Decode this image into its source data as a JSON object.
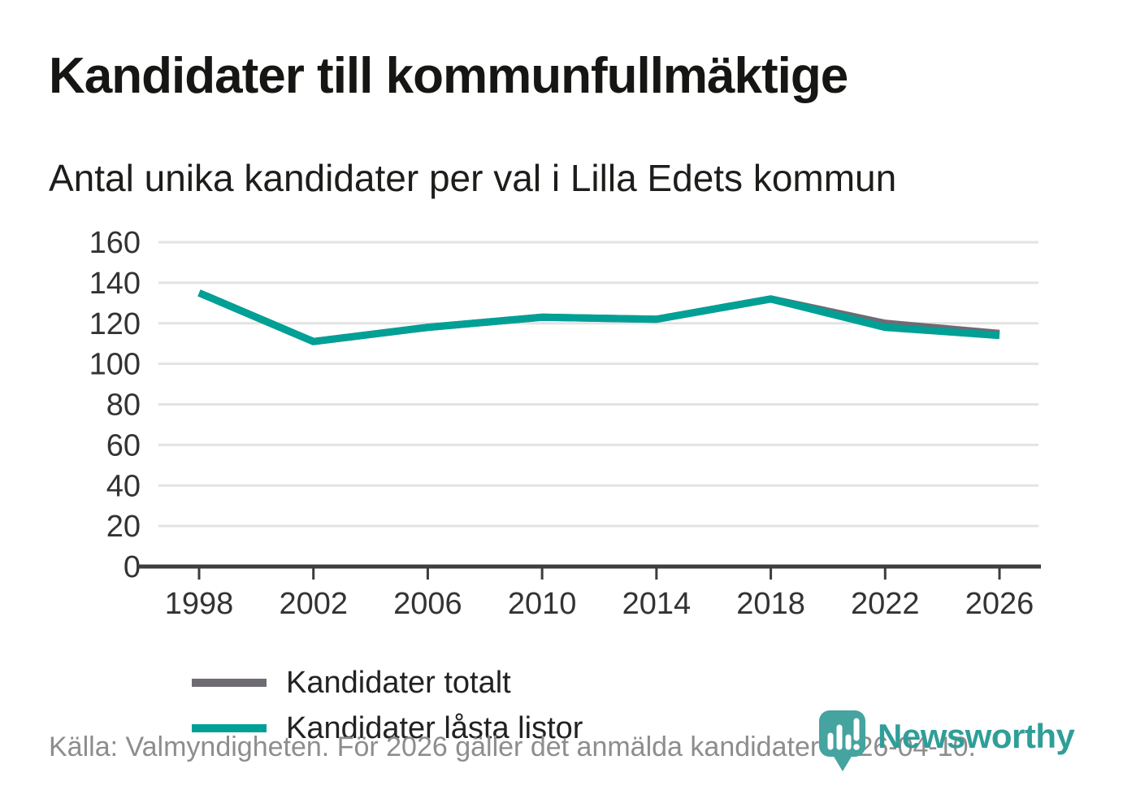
{
  "header": {
    "title": "Kandidater till kommunfullmäktige",
    "subtitle": "Antal unika kandidater per val i Lilla Edets kommun"
  },
  "footer": {
    "source_text": "Källa: Valmyndigheten. För 2026 gäller det anmälda kandidater 2026-04-10.",
    "logo_text": "Newsworthy"
  },
  "colors": {
    "total_line": "#6e6b73",
    "locked_line": "#00a096",
    "grid": "#e3e3e3",
    "axis": "#3d3d3d",
    "tick_label": "#333333",
    "footer_text": "#8d8d8d",
    "logo_teal": "#2f9e99",
    "logo_pin": "#45a3a0"
  },
  "chart_data": {
    "type": "line",
    "title": "Kandidater till kommunfullmäktige",
    "subtitle": "Antal unika kandidater per val i Lilla Edets kommun",
    "categories": [
      "1998",
      "2002",
      "2006",
      "2010",
      "2014",
      "2018",
      "2022",
      "2026"
    ],
    "series": [
      {
        "name": "Kandidater totalt",
        "color": "#6e6b73",
        "values": [
          135,
          111,
          118,
          123,
          122,
          132,
          120,
          115
        ]
      },
      {
        "name": "Kandidater låsta listor",
        "color": "#00a096",
        "values": [
          135,
          111,
          118,
          123,
          122,
          132,
          118,
          114
        ]
      }
    ],
    "ylim": [
      0,
      160
    ],
    "ytick_step": 20,
    "grid": "horizontal",
    "legend_position": "inside-left"
  }
}
